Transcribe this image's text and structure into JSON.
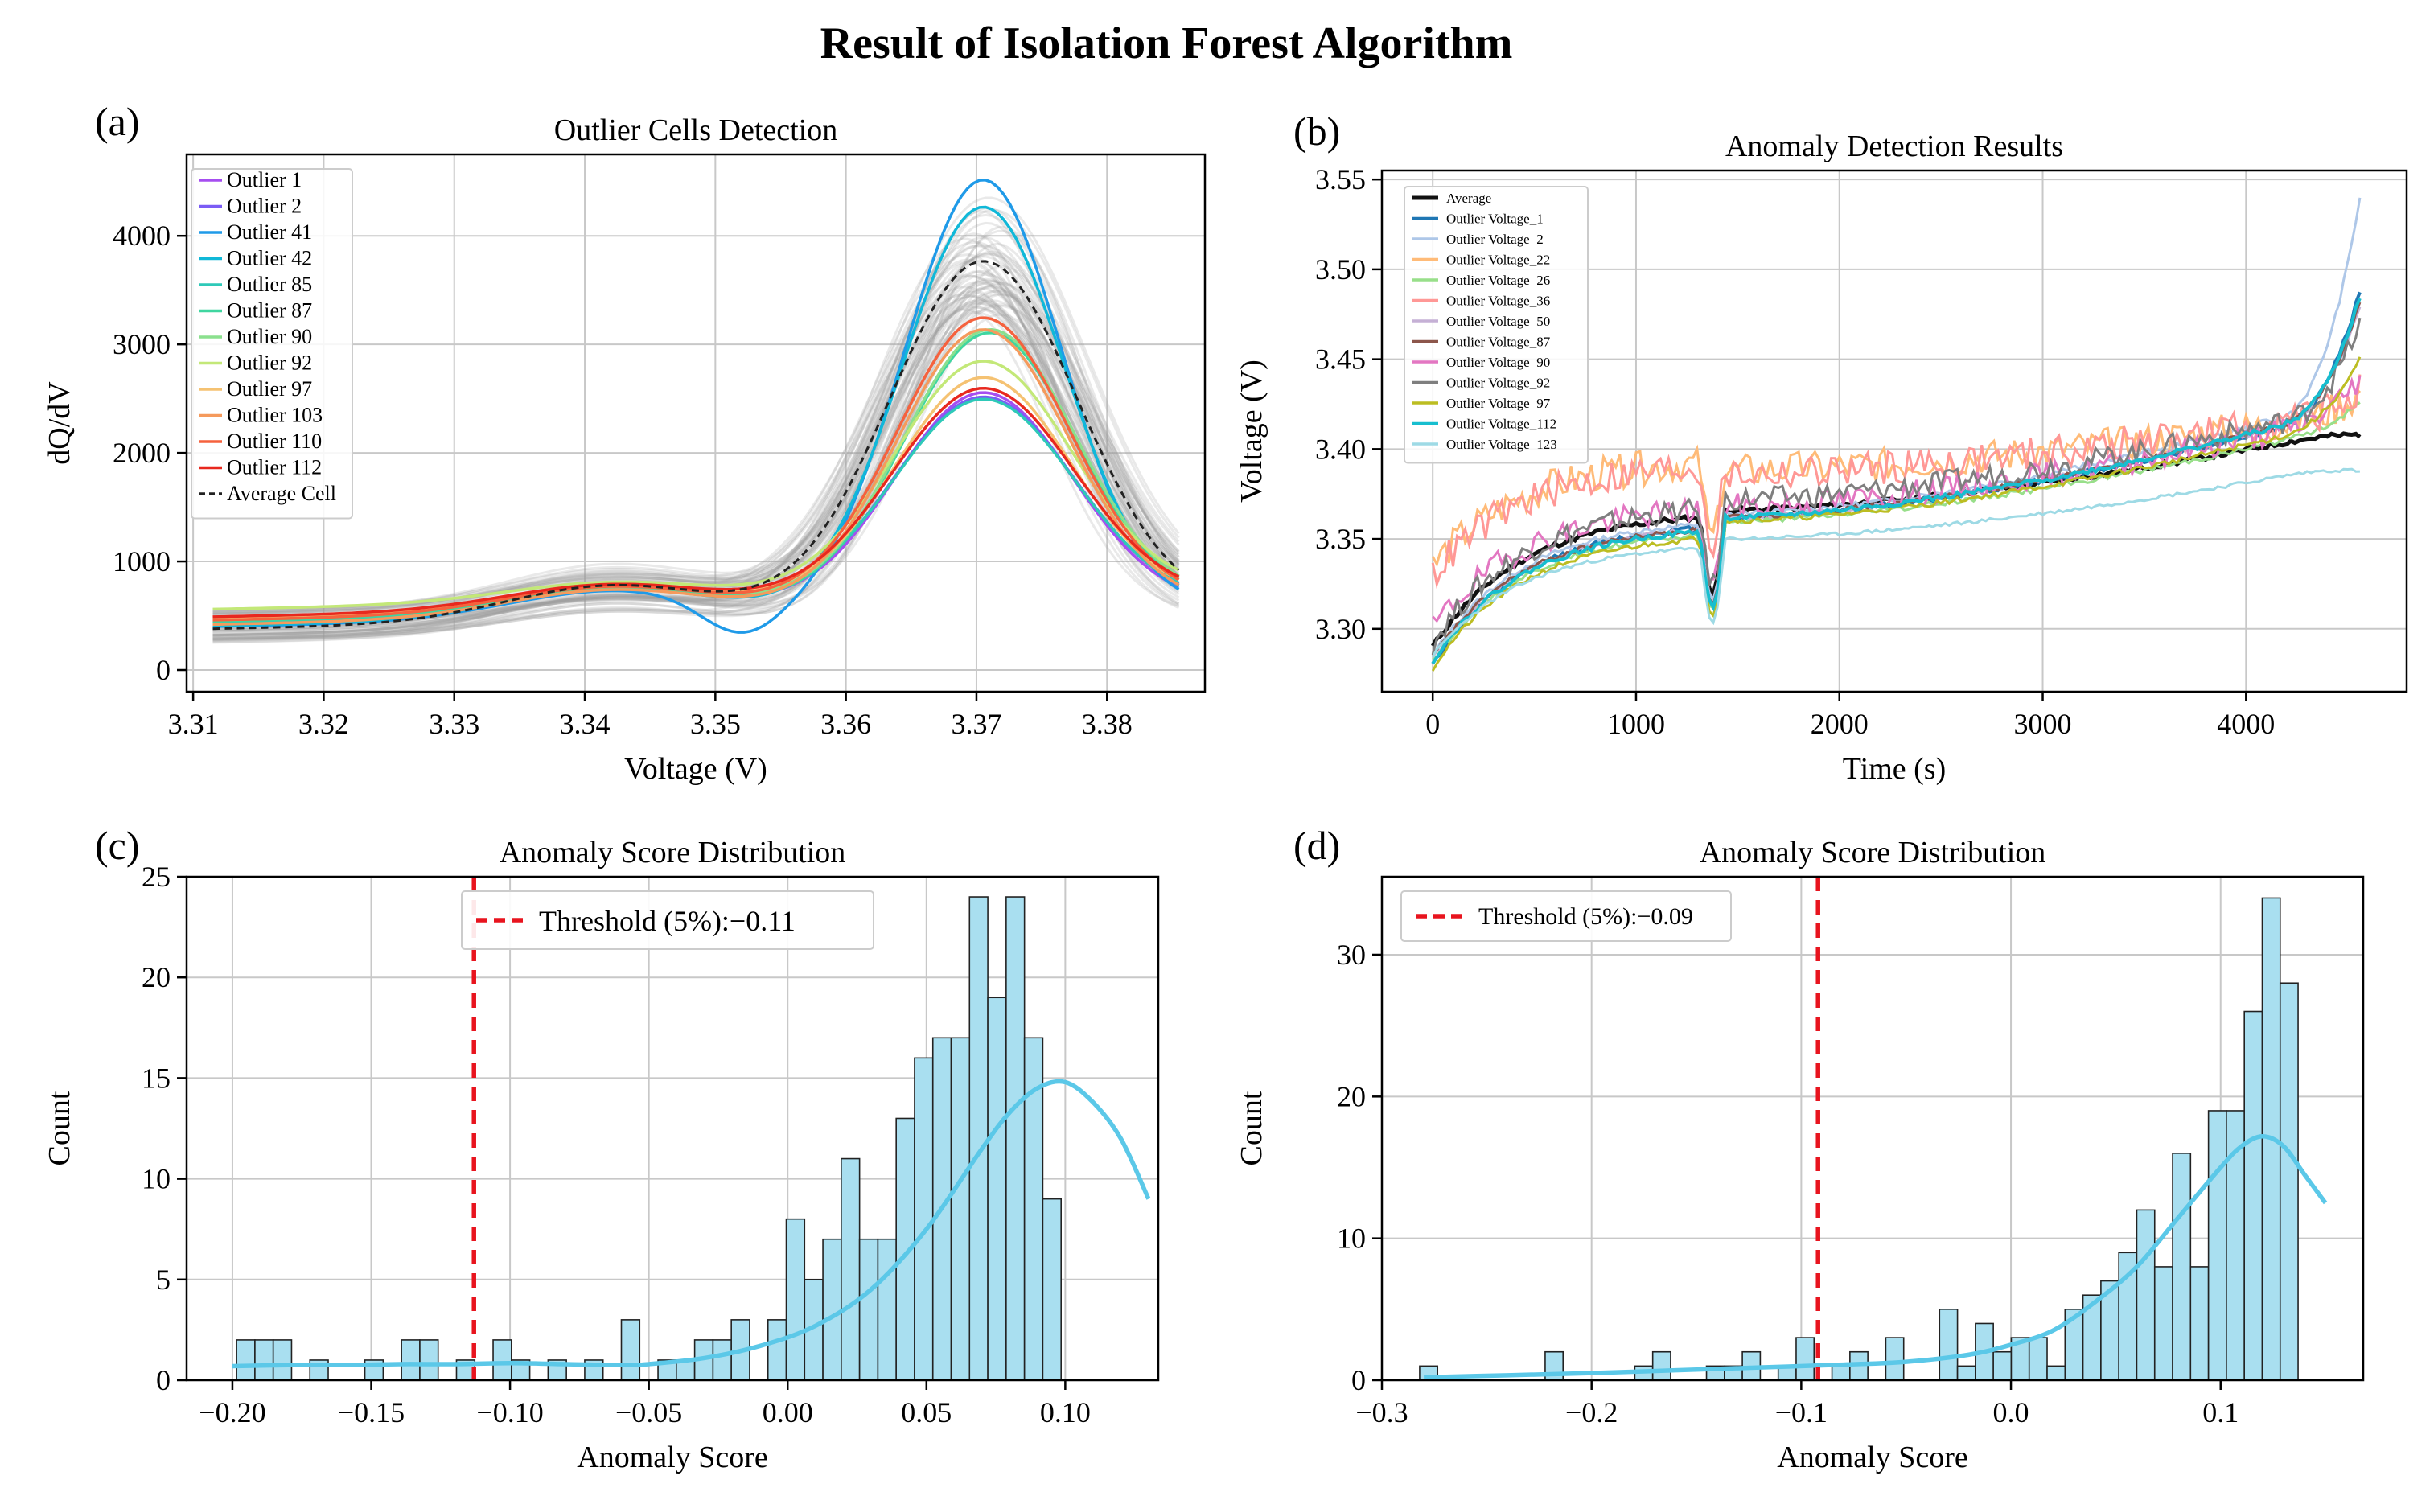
{
  "title": "Result of  Isolation Forest Algorithm",
  "chart_data": [
    {
      "panel_label": "(a)",
      "type": "line",
      "title": "Outlier Cells Detection",
      "xlabel": "Voltage (V)",
      "ylabel": "dQ/dV",
      "xlim": [
        3.3095,
        3.3875
      ],
      "ylim": [
        -200,
        4750
      ],
      "xticks": [
        3.31,
        3.32,
        3.33,
        3.34,
        3.35,
        3.36,
        3.37,
        3.38
      ],
      "yticks": [
        0,
        1000,
        2000,
        3000,
        4000
      ],
      "grid": true,
      "legend_position": "top-left",
      "x_range": [
        3.3115,
        3.3855
      ],
      "background_lines": 60,
      "average": {
        "name": "Average Cell",
        "color": "#222222",
        "base": 380,
        "bump_height": 330,
        "bump_center": 3.342,
        "bump_width": 0.008,
        "peak_height": 3250,
        "peak_center": 3.3705,
        "peak_width": 0.0072
      },
      "series": [
        {
          "name": "Outlier 1",
          "color": "#a64ef0",
          "peak_height": 2000,
          "peak_center": 3.3705,
          "peak_width": 0.0068,
          "base": 420,
          "bump_height": 280
        },
        {
          "name": "Outlier 2",
          "color": "#7b5cf5",
          "peak_height": 1950,
          "peak_center": 3.3705,
          "peak_width": 0.007,
          "base": 430,
          "bump_height": 270
        },
        {
          "name": "Outlier 41",
          "color": "#1f9ae8",
          "peak_height": 3980,
          "peak_center": 3.3705,
          "peak_width": 0.006,
          "base": 400,
          "bump_height": 260,
          "dip": 300
        },
        {
          "name": "Outlier 42",
          "color": "#10b8d8",
          "peak_height": 3720,
          "peak_center": 3.3705,
          "peak_width": 0.0062,
          "base": 410,
          "bump_height": 270
        },
        {
          "name": "Outlier 85",
          "color": "#2ec9b8",
          "peak_height": 1920,
          "peak_center": 3.3705,
          "peak_width": 0.007,
          "base": 440,
          "bump_height": 250
        },
        {
          "name": "Outlier 87",
          "color": "#3fd6a0",
          "peak_height": 2520,
          "peak_center": 3.371,
          "peak_width": 0.0066,
          "base": 450,
          "bump_height": 240
        },
        {
          "name": "Outlier 90",
          "color": "#8be08e",
          "peak_height": 2530,
          "peak_center": 3.371,
          "peak_width": 0.0066,
          "base": 470,
          "bump_height": 230
        },
        {
          "name": "Outlier 92",
          "color": "#c3e878",
          "peak_height": 2150,
          "peak_center": 3.3705,
          "peak_width": 0.0068,
          "base": 560,
          "bump_height": 180
        },
        {
          "name": "Outlier 97",
          "color": "#f5c272",
          "peak_height": 2080,
          "peak_center": 3.3705,
          "peak_width": 0.0068,
          "base": 480,
          "bump_height": 220
        },
        {
          "name": "Outlier 103",
          "color": "#f59a5c",
          "peak_height": 2580,
          "peak_center": 3.3705,
          "peak_width": 0.0066,
          "base": 420,
          "bump_height": 250
        },
        {
          "name": "Outlier 110",
          "color": "#f5623e",
          "peak_height": 2650,
          "peak_center": 3.3705,
          "peak_width": 0.0066,
          "base": 460,
          "bump_height": 240
        },
        {
          "name": "Outlier 112",
          "color": "#e8281e",
          "peak_height": 1970,
          "peak_center": 3.3705,
          "peak_width": 0.007,
          "base": 490,
          "bump_height": 230
        }
      ]
    },
    {
      "panel_label": "(b)",
      "type": "line",
      "title": "Anomaly Detection Results",
      "xlabel": "Time (s)",
      "ylabel": "Voltage (V)",
      "xlim": [
        -250,
        4790
      ],
      "ylim": [
        3.265,
        3.555
      ],
      "xticks": [
        0,
        1000,
        2000,
        3000,
        4000
      ],
      "yticks": [
        3.3,
        3.35,
        3.4,
        3.45,
        3.5,
        3.55
      ],
      "grid": true,
      "legend_position": "top-left",
      "x_end": 4560,
      "dip_time": 1375,
      "series": [
        {
          "name": "Average",
          "color": "#111111",
          "start": 3.29,
          "pre": 3.362,
          "post": 3.366,
          "end": 3.412,
          "fin": 3.408,
          "tail": 0,
          "noise": 0.0015,
          "width": 5
        },
        {
          "name": "Outlier Voltage_1",
          "color": "#1f77b4",
          "start": 3.28,
          "pre": 3.356,
          "post": 3.362,
          "end": 3.424,
          "fin": 3.488,
          "tail": 0.055,
          "noise": 0.0015,
          "width": 4
        },
        {
          "name": "Outlier Voltage_2",
          "color": "#aec7e8",
          "start": 3.285,
          "pre": 3.358,
          "post": 3.364,
          "end": 3.43,
          "fin": 3.54,
          "tail": 0.08,
          "noise": 0.0015,
          "width": 3
        },
        {
          "name": "Outlier Voltage_22",
          "color": "#ffbb78",
          "start": 3.335,
          "pre": 3.392,
          "post": 3.388,
          "end": 3.42,
          "fin": 3.43,
          "tail": 0,
          "noise": 0.006,
          "width": 3
        },
        {
          "name": "Outlier Voltage_26",
          "color": "#98df8a",
          "start": 3.282,
          "pre": 3.352,
          "post": 3.36,
          "end": 3.415,
          "fin": 3.425,
          "tail": 0.01,
          "noise": 0.0015,
          "width": 3
        },
        {
          "name": "Outlier Voltage_36",
          "color": "#ff9896",
          "start": 3.33,
          "pre": 3.39,
          "post": 3.386,
          "end": 3.422,
          "fin": 3.432,
          "tail": 0,
          "noise": 0.006,
          "width": 3
        },
        {
          "name": "Outlier Voltage_50",
          "color": "#c5b0d5",
          "start": 3.283,
          "pre": 3.355,
          "post": 3.362,
          "end": 3.425,
          "fin": 3.48,
          "tail": 0.05,
          "noise": 0.0015,
          "width": 3
        },
        {
          "name": "Outlier Voltage_87",
          "color": "#8c564b",
          "start": 3.284,
          "pre": 3.355,
          "post": 3.362,
          "end": 3.425,
          "fin": 3.482,
          "tail": 0.05,
          "noise": 0.0015,
          "width": 3
        },
        {
          "name": "Outlier Voltage_90",
          "color": "#e377c2",
          "start": 3.3,
          "pre": 3.366,
          "post": 3.368,
          "end": 3.42,
          "fin": 3.44,
          "tail": 0.01,
          "noise": 0.0045,
          "width": 3
        },
        {
          "name": "Outlier Voltage_92",
          "color": "#7f7f7f",
          "start": 3.292,
          "pre": 3.366,
          "post": 3.372,
          "end": 3.425,
          "fin": 3.47,
          "tail": 0.04,
          "noise": 0.004,
          "width": 3
        },
        {
          "name": "Outlier Voltage_97",
          "color": "#bcbd22",
          "start": 3.278,
          "pre": 3.35,
          "post": 3.36,
          "end": 3.418,
          "fin": 3.45,
          "tail": 0.03,
          "noise": 0.0015,
          "width": 3
        },
        {
          "name": "Outlier Voltage_112",
          "color": "#17becf",
          "start": 3.282,
          "pre": 3.354,
          "post": 3.362,
          "end": 3.425,
          "fin": 3.485,
          "tail": 0.055,
          "noise": 0.0015,
          "width": 4
        },
        {
          "name": "Outlier Voltage_123",
          "color": "#9edae5",
          "start": 3.285,
          "pre": 3.345,
          "post": 3.35,
          "end": 3.393,
          "fin": 3.388,
          "tail": 0,
          "noise": 0.001,
          "width": 3
        }
      ]
    },
    {
      "panel_label": "(c)",
      "type": "bar",
      "title": "Anomaly Score Distribution",
      "xlabel": "Anomaly Score",
      "ylabel": "Count",
      "xlim": [
        -0.2165,
        0.1335
      ],
      "ylim": [
        0,
        25
      ],
      "xticks": [
        -0.2,
        -0.15,
        -0.1,
        -0.05,
        0.0,
        0.05,
        0.1
      ],
      "xtick_labels": [
        "−0.20",
        "−0.15",
        "−0.10",
        "−0.05",
        "0.00",
        "0.05",
        "0.10"
      ],
      "yticks": [
        0,
        5,
        10,
        15,
        20,
        25
      ],
      "grid": true,
      "legend_position": "top-center",
      "bin_start": -0.1985,
      "bin_width": 0.0066,
      "counts": [
        2,
        2,
        2,
        0,
        1,
        0,
        0,
        1,
        0,
        2,
        2,
        0,
        1,
        0,
        2,
        1,
        0,
        1,
        0,
        1,
        0,
        3,
        0,
        1,
        1,
        2,
        2,
        3,
        0,
        3,
        8,
        5,
        7,
        11,
        7,
        7,
        13,
        16,
        17,
        17,
        24,
        19,
        24,
        17,
        9
      ],
      "threshold": -0.113,
      "threshold_label": "Threshold (5%):−0.11",
      "kde": [
        [
          -0.2,
          0.7
        ],
        [
          -0.18,
          0.75
        ],
        [
          -0.16,
          0.75
        ],
        [
          -0.14,
          0.8
        ],
        [
          -0.12,
          0.8
        ],
        [
          -0.1,
          0.85
        ],
        [
          -0.08,
          0.8
        ],
        [
          -0.06,
          0.75
        ],
        [
          -0.05,
          0.8
        ],
        [
          -0.03,
          1.1
        ],
        [
          -0.01,
          1.7
        ],
        [
          0.01,
          2.7
        ],
        [
          0.03,
          4.5
        ],
        [
          0.05,
          7.5
        ],
        [
          0.07,
          11.5
        ],
        [
          0.08,
          13.3
        ],
        [
          0.09,
          14.5
        ],
        [
          0.1,
          14.8
        ],
        [
          0.11,
          13.8
        ],
        [
          0.12,
          12.0
        ],
        [
          0.13,
          9.0
        ]
      ],
      "bar_color": "#a9dff0",
      "kde_color": "#5bc8e8"
    },
    {
      "panel_label": "(d)",
      "type": "bar",
      "title": "Anomaly Score Distribution",
      "xlabel": "Anomaly Score",
      "ylabel": "Count",
      "xlim": [
        -0.3,
        0.168
      ],
      "ylim": [
        0,
        35.5
      ],
      "xticks": [
        -0.3,
        -0.2,
        -0.1,
        0.0,
        0.1
      ],
      "xtick_labels": [
        "−0.3",
        "−0.2",
        "−0.1",
        "0.0",
        "0.1"
      ],
      "yticks": [
        0,
        10,
        20,
        30
      ],
      "grid": true,
      "legend_position": "top-left",
      "bin_start": -0.282,
      "bin_width": 0.00855,
      "counts": [
        1,
        0,
        0,
        0,
        0,
        0,
        0,
        2,
        0,
        0,
        0,
        0,
        1,
        2,
        0,
        0,
        1,
        1,
        2,
        0,
        1,
        3,
        0,
        1,
        2,
        0,
        3,
        0,
        0,
        5,
        1,
        4,
        2,
        3,
        3,
        1,
        5,
        6,
        7,
        9,
        12,
        8,
        16,
        8,
        19,
        19,
        26,
        34,
        28
      ],
      "threshold": -0.092,
      "threshold_label": "Threshold (5%):−0.09",
      "kde": [
        [
          -0.28,
          0.2
        ],
        [
          -0.24,
          0.35
        ],
        [
          -0.2,
          0.5
        ],
        [
          -0.16,
          0.7
        ],
        [
          -0.12,
          0.9
        ],
        [
          -0.08,
          1.1
        ],
        [
          -0.05,
          1.3
        ],
        [
          -0.02,
          1.8
        ],
        [
          0.0,
          2.5
        ],
        [
          0.02,
          3.5
        ],
        [
          0.04,
          5.5
        ],
        [
          0.06,
          8.0
        ],
        [
          0.08,
          11.5
        ],
        [
          0.1,
          15.0
        ],
        [
          0.11,
          16.5
        ],
        [
          0.12,
          17.2
        ],
        [
          0.13,
          16.5
        ],
        [
          0.14,
          14.5
        ],
        [
          0.15,
          12.5
        ]
      ],
      "bar_color": "#a9dff0",
      "kde_color": "#5bc8e8"
    }
  ]
}
